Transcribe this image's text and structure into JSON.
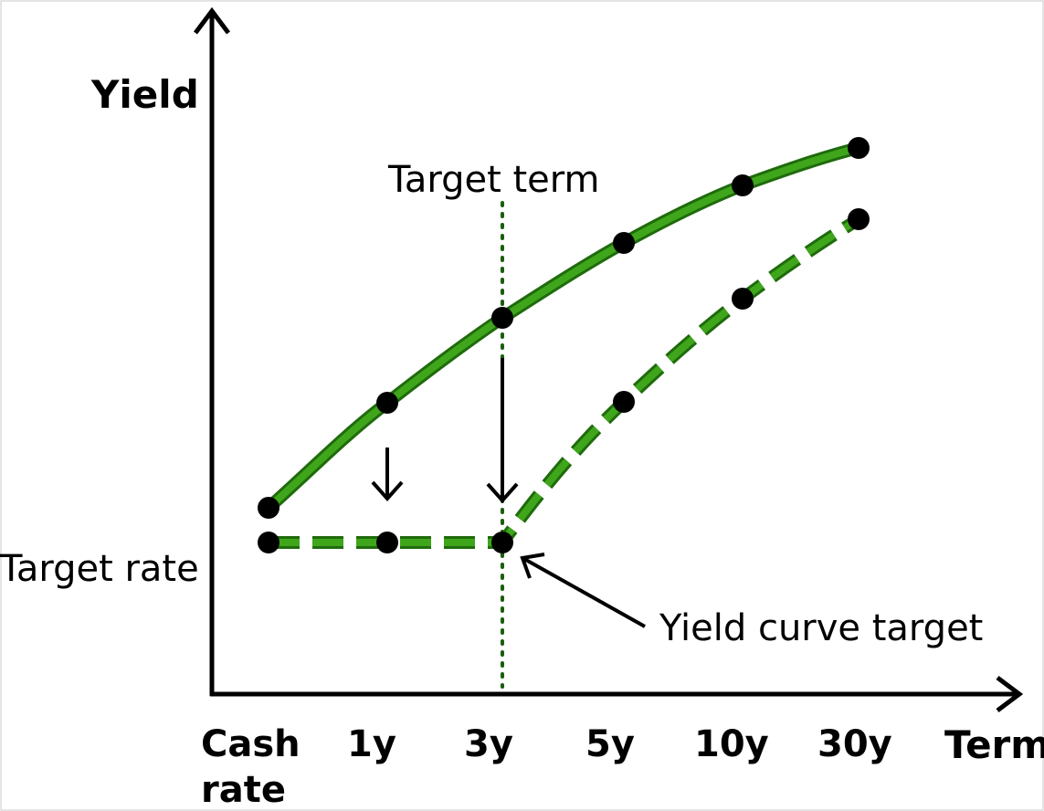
{
  "diagram": {
    "y_axis_label": "Yield",
    "x_axis_label": "Term",
    "x_ticks": [
      "Cash",
      "rate",
      "1y",
      "3y",
      "5y",
      "10y",
      "30y"
    ],
    "annotations": {
      "target_term": "Target term",
      "target_rate": "Target rate",
      "yield_curve_target": "Yield curve target"
    },
    "colors": {
      "curve": "#3a9a1a",
      "curve_dark": "#1f6b0c",
      "guide": "#1b5e0f",
      "axis": "#000000"
    }
  }
}
